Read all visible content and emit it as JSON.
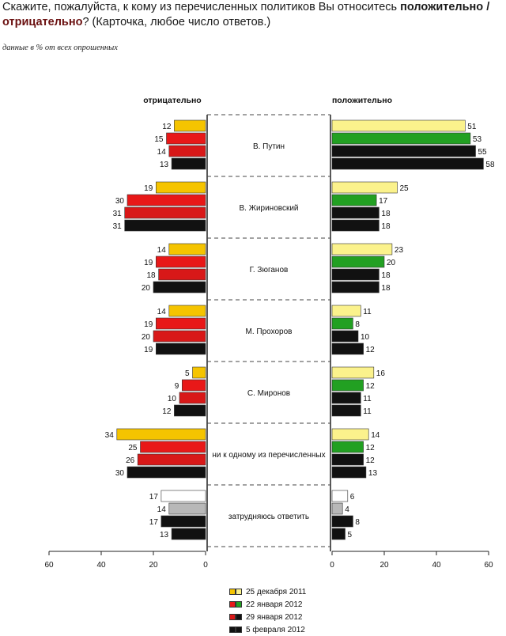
{
  "title": {
    "part1": "Скажите, пожалуйста, к кому из перечисленных политиков Вы относитесь ",
    "positive": "положительно",
    "slash": " / ",
    "negative": "отрицательно",
    "part2": "? (Карточка, любое число ответов.)"
  },
  "subtitle": "данные в % от всех опрошенных",
  "chart_data": {
    "type": "bar",
    "orientation": "horizontal",
    "layout": "diverging (mirrored panels)",
    "panels": {
      "negative_header": "отрицательно",
      "positive_header": "положительно"
    },
    "categories": [
      "В. Путин",
      "В. Жириновский",
      "Г. Зюганов",
      "М. Прохоров",
      "С. Миронов",
      "ни к одному из перечисленных",
      "затрудняюсь ответить"
    ],
    "series": [
      {
        "name": "25 декабря 2011",
        "negative": [
          12,
          19,
          14,
          14,
          5,
          34,
          17
        ],
        "positive": [
          51,
          25,
          23,
          11,
          16,
          14,
          6
        ],
        "neg_color": "#f5c400",
        "pos_color": "#fbf28c"
      },
      {
        "name": "22 января 2012",
        "negative": [
          15,
          30,
          19,
          19,
          9,
          25,
          14
        ],
        "positive": [
          53,
          17,
          20,
          8,
          12,
          12,
          4
        ],
        "neg_color": "#e81818",
        "pos_color": "#22a022"
      },
      {
        "name": "29 января 2012",
        "negative": [
          14,
          31,
          18,
          20,
          10,
          26,
          17
        ],
        "positive": [
          55,
          18,
          18,
          10,
          11,
          12,
          8
        ],
        "neg_color": "#d81818",
        "pos_color": "#111111"
      },
      {
        "name": "5 февраля 2012",
        "negative": [
          13,
          31,
          20,
          19,
          12,
          30,
          13
        ],
        "positive": [
          58,
          18,
          18,
          12,
          11,
          13,
          5
        ],
        "neg_color": "#111111",
        "pos_color": "#111111"
      }
    ],
    "gray_override": {
      "category": "затрудняюсь ответить",
      "colors": [
        "#ffffff",
        "#b8b8b8",
        "#111111",
        "#111111"
      ]
    },
    "x_ticks_negative": [
      "60",
      "40",
      "20",
      "0"
    ],
    "x_ticks_positive": [
      "0",
      "20",
      "40",
      "60"
    ],
    "xlim": [
      0,
      60
    ],
    "grid": false,
    "legend_position": "bottom-center"
  }
}
